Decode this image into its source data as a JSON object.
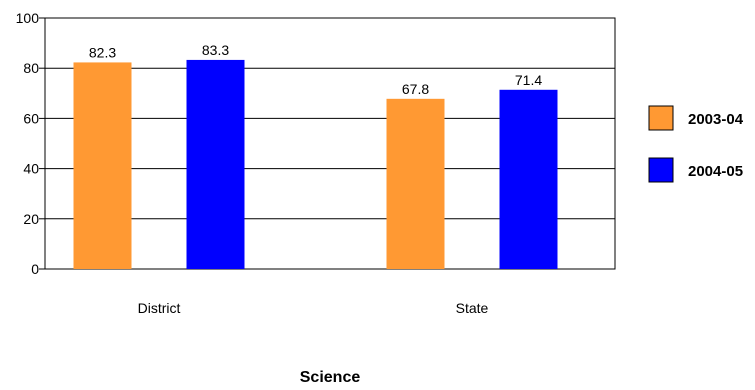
{
  "chart_data": {
    "type": "bar",
    "categories": [
      "District",
      "State"
    ],
    "series": [
      {
        "name": "2003-04",
        "values": [
          82.3,
          67.8
        ],
        "color": "#FF9933"
      },
      {
        "name": "2004-05",
        "values": [
          83.3,
          71.4
        ],
        "color": "#0000FF"
      }
    ],
    "xlabel": "Science",
    "ylabel": "",
    "ylim": [
      0,
      100
    ],
    "yticks": [
      0,
      20,
      40,
      60,
      80,
      100
    ],
    "grid": true,
    "legend": "right",
    "data_labels": true
  }
}
